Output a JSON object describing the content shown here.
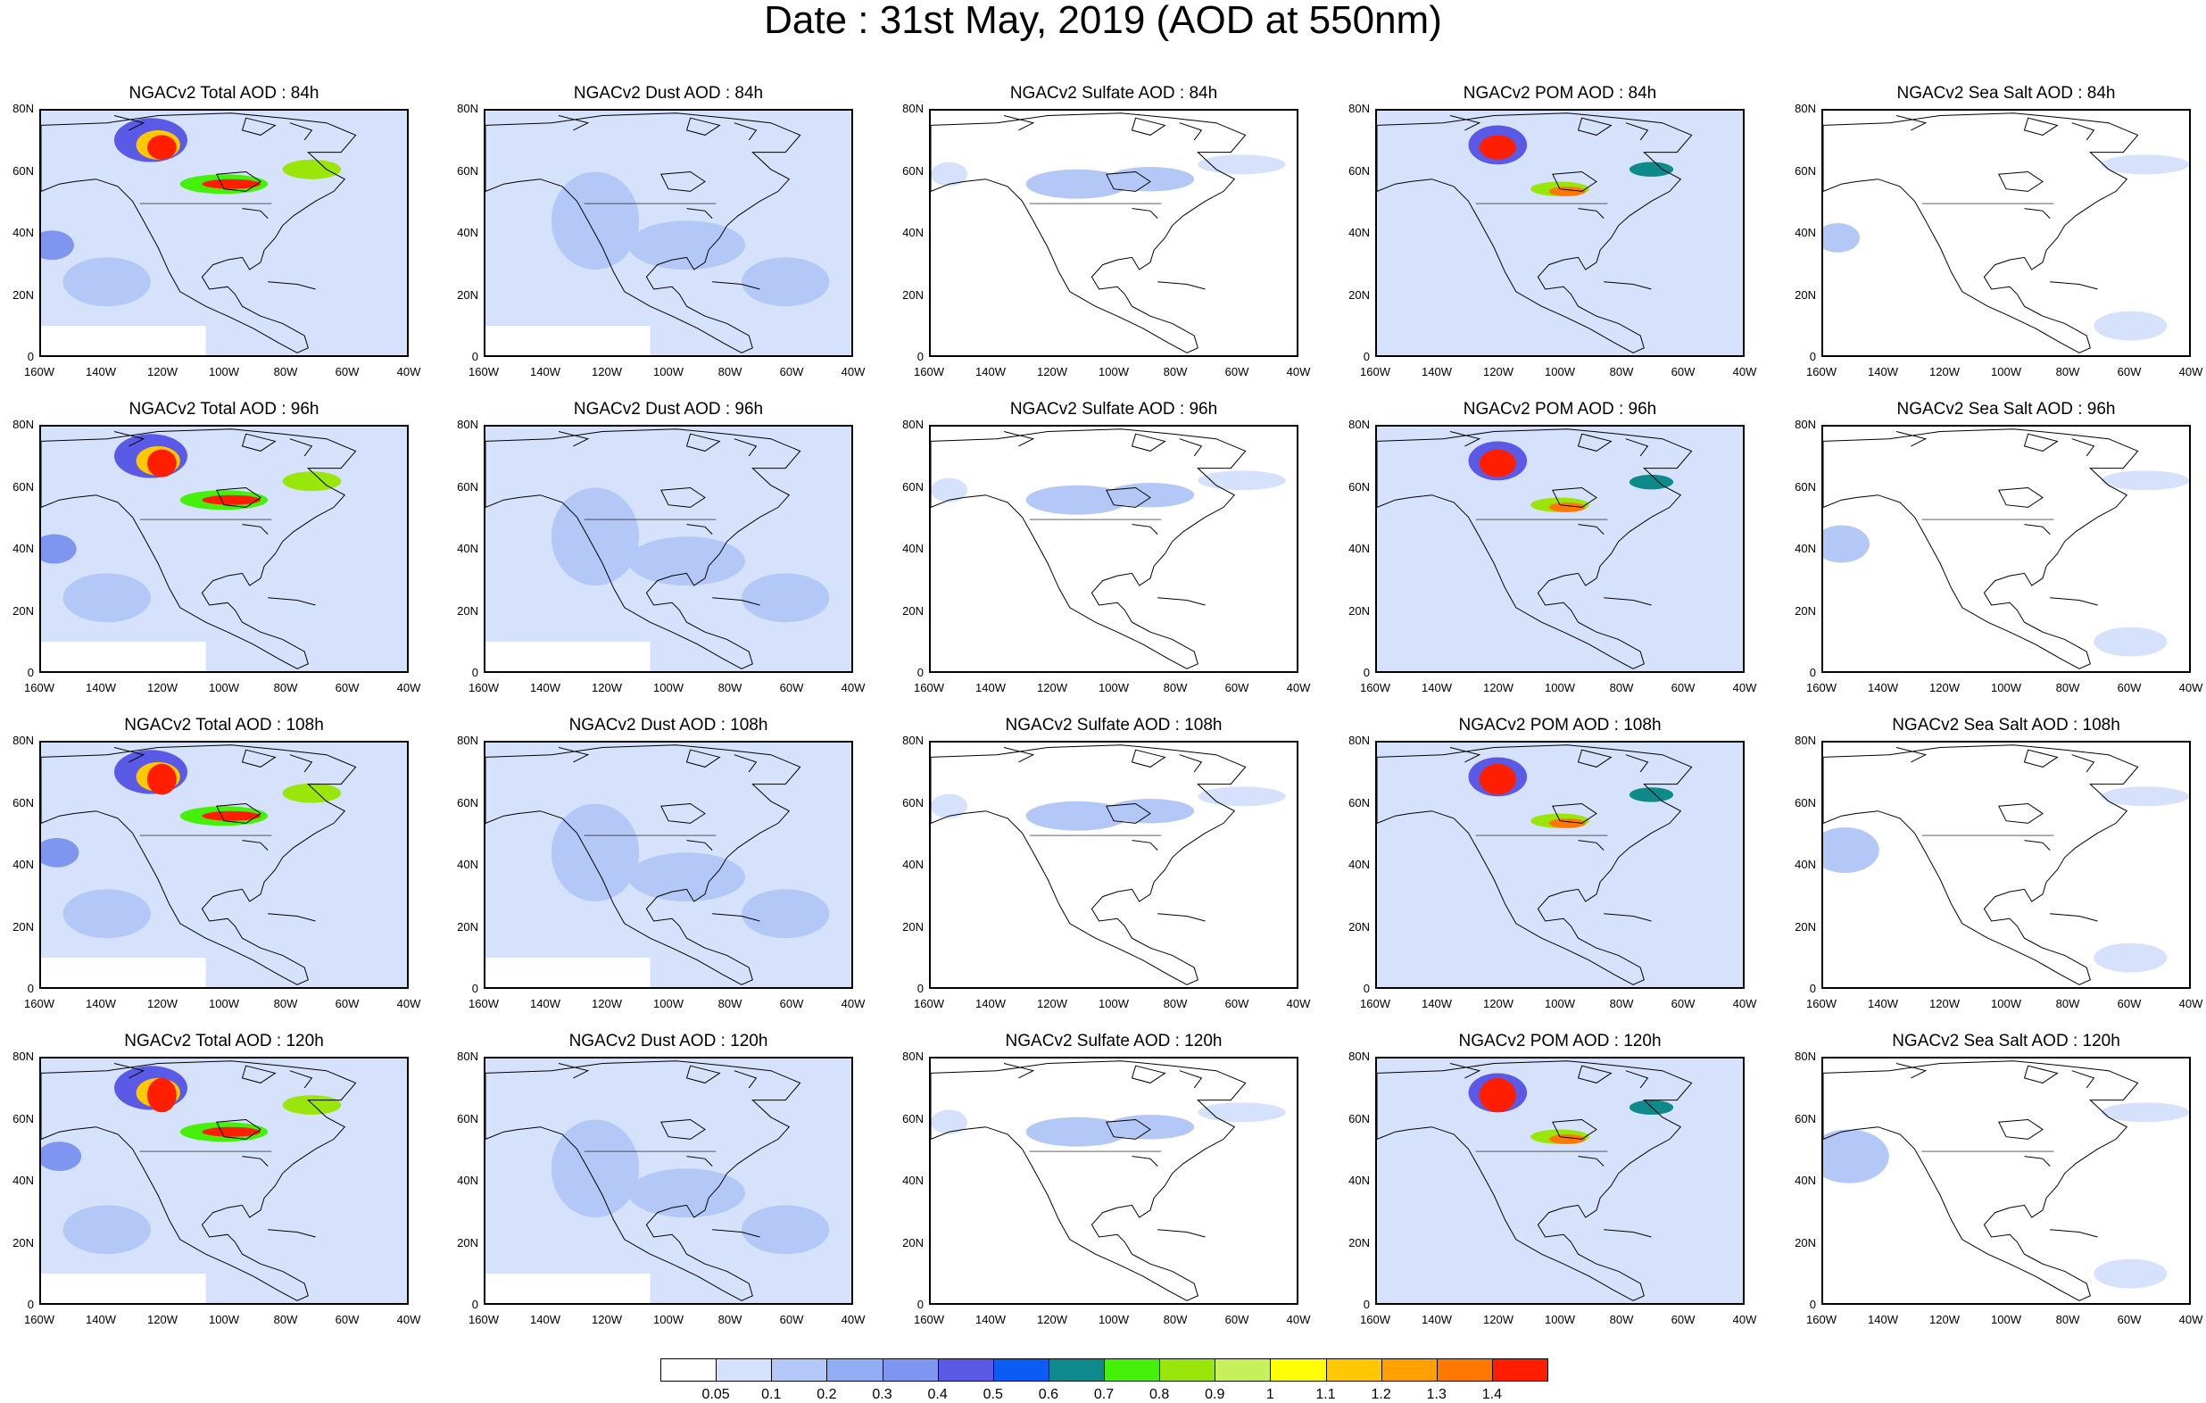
{
  "title": "Date : 31st May, 2019 (AOD at 550nm)",
  "lat_ticks": [
    "80N",
    "60N",
    "40N",
    "20N",
    "0"
  ],
  "lon_ticks": [
    "160W",
    "140W",
    "120W",
    "100W",
    "80W",
    "60W",
    "40W"
  ],
  "panels": [
    {
      "title": "NGACv2 Total AOD : 84h",
      "species": "total",
      "forecast_hour": 84
    },
    {
      "title": "NGACv2 Dust AOD : 84h",
      "species": "dust",
      "forecast_hour": 84
    },
    {
      "title": "NGACv2 Sulfate AOD : 84h",
      "species": "sulfate",
      "forecast_hour": 84
    },
    {
      "title": "NGACv2 POM AOD : 84h",
      "species": "pom",
      "forecast_hour": 84
    },
    {
      "title": "NGACv2 Sea Salt AOD : 84h",
      "species": "seasalt",
      "forecast_hour": 84
    },
    {
      "title": "NGACv2 Total AOD : 96h",
      "species": "total",
      "forecast_hour": 96
    },
    {
      "title": "NGACv2 Dust AOD : 96h",
      "species": "dust",
      "forecast_hour": 96
    },
    {
      "title": "NGACv2 Sulfate AOD : 96h",
      "species": "sulfate",
      "forecast_hour": 96
    },
    {
      "title": "NGACv2 POM AOD : 96h",
      "species": "pom",
      "forecast_hour": 96
    },
    {
      "title": "NGACv2 Sea Salt AOD : 96h",
      "species": "seasalt",
      "forecast_hour": 96
    },
    {
      "title": "NGACv2 Total AOD : 108h",
      "species": "total",
      "forecast_hour": 108
    },
    {
      "title": "NGACv2 Dust AOD : 108h",
      "species": "dust",
      "forecast_hour": 108
    },
    {
      "title": "NGACv2 Sulfate AOD : 108h",
      "species": "sulfate",
      "forecast_hour": 108
    },
    {
      "title": "NGACv2 POM AOD : 108h",
      "species": "pom",
      "forecast_hour": 108
    },
    {
      "title": "NGACv2 Sea Salt AOD : 108h",
      "species": "seasalt",
      "forecast_hour": 108
    },
    {
      "title": "NGACv2 Total AOD : 120h",
      "species": "total",
      "forecast_hour": 120
    },
    {
      "title": "NGACv2 Dust AOD : 120h",
      "species": "dust",
      "forecast_hour": 120
    },
    {
      "title": "NGACv2 Sulfate AOD : 120h",
      "species": "sulfate",
      "forecast_hour": 120
    },
    {
      "title": "NGACv2 POM AOD : 120h",
      "species": "pom",
      "forecast_hour": 120
    },
    {
      "title": "NGACv2 Sea Salt  AOD : 120h",
      "species": "seasalt",
      "forecast_hour": 120
    }
  ],
  "colorbar": {
    "labels": [
      "0.05",
      "0.1",
      "0.2",
      "0.3",
      "0.4",
      "0.5",
      "0.6",
      "0.7",
      "0.8",
      "0.9",
      "1",
      "1.1",
      "1.2",
      "1.3",
      "1.4"
    ],
    "colors": [
      "#ffffff",
      "#d6e2fb",
      "#b4c8f7",
      "#91aef5",
      "#7f96f0",
      "#5a5ae6",
      "#0a5cf5",
      "#0e8a8a",
      "#45f00a",
      "#9be60a",
      "#c8f05a",
      "#ffff00",
      "#ffc800",
      "#ffa000",
      "#ff7800",
      "#ff1e00"
    ]
  }
}
